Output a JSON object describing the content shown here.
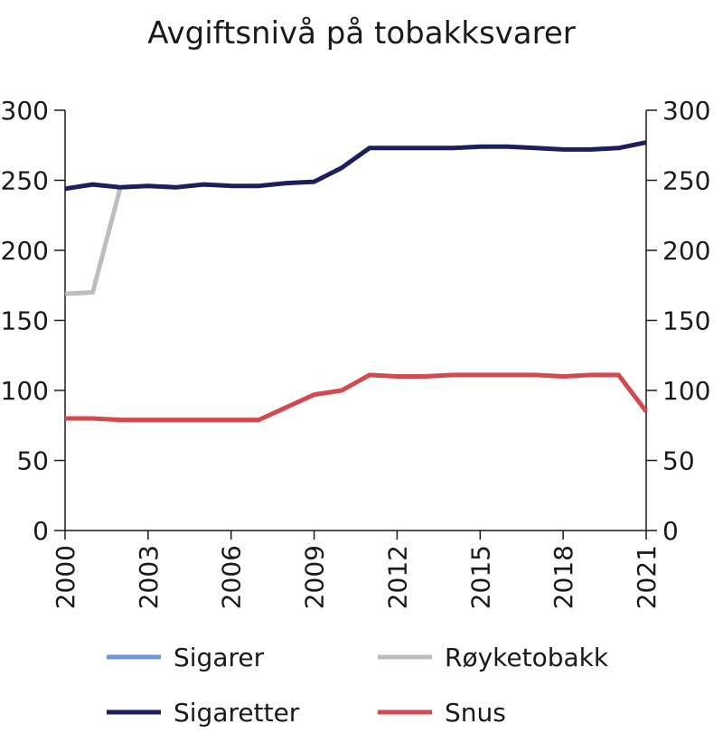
{
  "chart_data": {
    "type": "line",
    "title": "Avgiftsnivå på tobakksvarer",
    "xlabel": "",
    "ylabel": "",
    "ylim": [
      0,
      300
    ],
    "xlim": [
      2000,
      2021
    ],
    "y_ticks": [
      "0",
      "50",
      "100",
      "150",
      "200",
      "250",
      "300"
    ],
    "y_ticks_right": [
      "0",
      "50",
      "100",
      "150",
      "200",
      "250",
      "300"
    ],
    "x_ticks": [
      "2000",
      "2003",
      "2006",
      "2009",
      "2012",
      "2015",
      "2018",
      "2021"
    ],
    "grid": false,
    "legend_position": "bottom",
    "x": [
      2000,
      2001,
      2002,
      2003,
      2004,
      2005,
      2006,
      2007,
      2008,
      2009,
      2010,
      2011,
      2012,
      2013,
      2014,
      2015,
      2016,
      2017,
      2018,
      2019,
      2020,
      2021
    ],
    "series": [
      {
        "name": "Sigarer",
        "color": "#6f95d6",
        "values": [
          null,
          null,
          null,
          null,
          null,
          null,
          null,
          null,
          null,
          null,
          null,
          null,
          null,
          null,
          null,
          null,
          null,
          null,
          null,
          null,
          null,
          null
        ]
      },
      {
        "name": "Røyketobakk",
        "color": "#bdbdbd",
        "values": [
          169,
          170,
          245,
          null,
          null,
          null,
          null,
          null,
          null,
          null,
          null,
          null,
          null,
          null,
          null,
          null,
          null,
          null,
          null,
          null,
          null,
          null
        ]
      },
      {
        "name": "Sigaretter",
        "color": "#1b1f5e",
        "values": [
          244,
          247,
          245,
          246,
          245,
          247,
          246,
          246,
          248,
          249,
          259,
          273,
          273,
          273,
          273,
          274,
          274,
          273,
          272,
          272,
          273,
          277
        ]
      },
      {
        "name": "Snus",
        "color": "#d4494f",
        "values": [
          80,
          80,
          79,
          79,
          79,
          79,
          79,
          79,
          88,
          97,
          100,
          111,
          110,
          110,
          111,
          111,
          111,
          111,
          110,
          111,
          111,
          85
        ]
      }
    ]
  }
}
